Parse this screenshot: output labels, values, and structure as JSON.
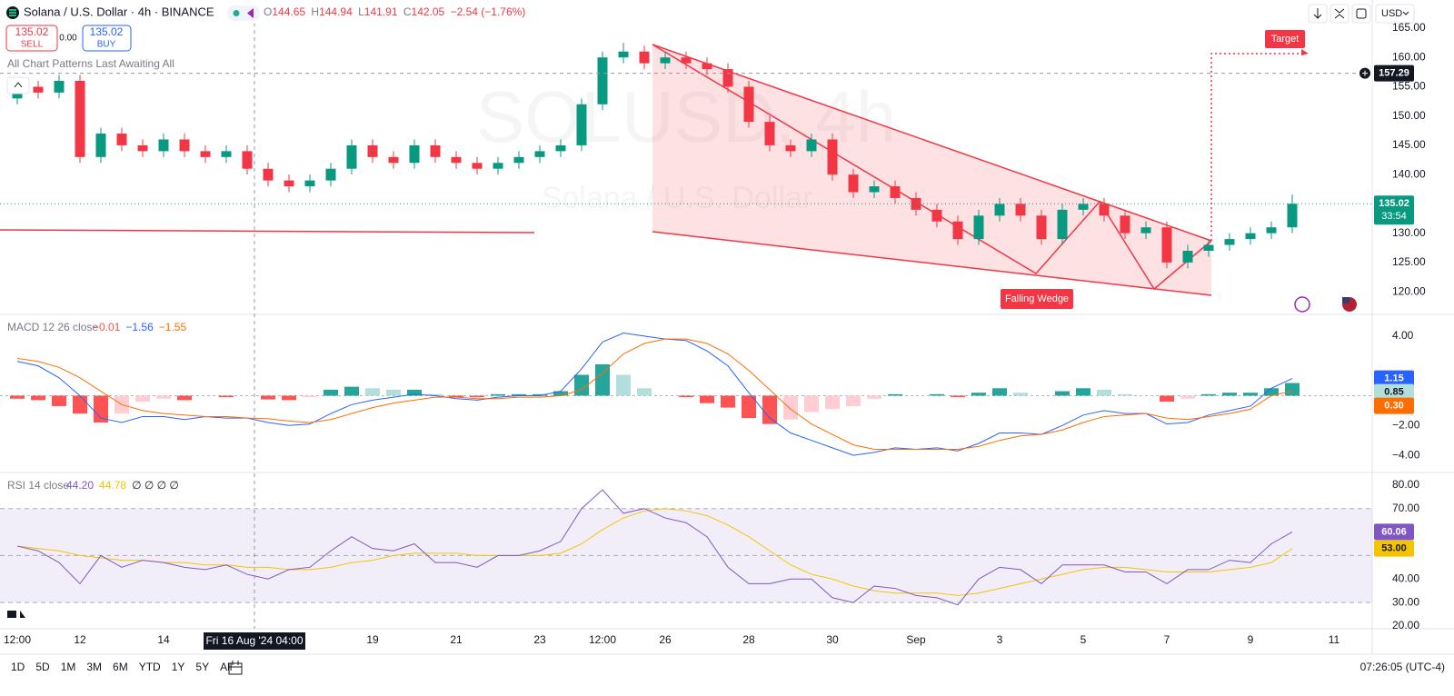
{
  "header": {
    "symbol": "Solana / U.S. Dollar · 4h · BINANCE",
    "ohlc": [
      {
        "key": "O",
        "value": 144.65
      },
      {
        "key": "H",
        "value": 144.94
      },
      {
        "key": "L",
        "value": 141.91
      },
      {
        "key": "C",
        "value": 142.05
      }
    ],
    "change": "−2.54 (−1.76%)"
  },
  "trade": {
    "sell_price": "135.02",
    "sell": "SELL",
    "spread": "0.00",
    "buy_price": "135.02",
    "buy": "BUY"
  },
  "indicator_label": "All Chart Patterns Last Awaiting All",
  "watermark": {
    "ticker": "SOLUSD, 4h",
    "name": "Solana / U.S. Dollar"
  },
  "annotations": {
    "target": "Target",
    "pattern": "Falling Wedge"
  },
  "currency": "USD",
  "chart_data": [
    {
      "type": "candlestick",
      "categories": [
        "12:00",
        null,
        null,
        "12",
        null,
        null,
        null,
        "14",
        null,
        null,
        null,
        null,
        null,
        null,
        null,
        null,
        null,
        "19",
        null,
        null,
        null,
        "21",
        null,
        null,
        null,
        "23",
        null,
        null,
        "12:00",
        null,
        null,
        "26",
        null,
        null,
        null,
        "28",
        null,
        null,
        null,
        "30",
        null,
        null,
        null,
        "Sep",
        null,
        null,
        null,
        "3",
        null,
        null,
        null,
        "5",
        null,
        null,
        null,
        "7",
        null,
        null,
        null,
        "9",
        null,
        null,
        null,
        "11"
      ],
      "open": [
        153,
        155,
        154,
        156,
        143,
        147,
        145,
        144,
        146,
        144,
        143,
        144,
        141,
        139,
        138,
        139,
        141,
        145,
        143,
        142,
        145,
        143,
        142,
        141,
        142,
        143,
        144,
        145,
        152,
        160,
        161,
        159,
        160,
        159,
        158,
        155,
        149,
        145,
        144,
        146,
        140,
        137,
        138,
        136,
        134,
        132,
        129,
        133,
        135,
        133,
        129,
        134,
        135,
        133,
        130,
        131,
        125,
        127,
        128,
        129,
        130,
        131,
        null,
        null
      ],
      "high": [
        156,
        156,
        157,
        157,
        148,
        148,
        146,
        147,
        147,
        145,
        145,
        145,
        142,
        140,
        140,
        142,
        146,
        146,
        144,
        146,
        146,
        144,
        143,
        143,
        144,
        145,
        146,
        153,
        161,
        162.5,
        162,
        161,
        161,
        160,
        159,
        156,
        150,
        146,
        147,
        147,
        141,
        139,
        139,
        137,
        135,
        133,
        134,
        136,
        136,
        134,
        135,
        136,
        136,
        134,
        132,
        132,
        128,
        129,
        130,
        131,
        132,
        136.6,
        null,
        null
      ],
      "low": [
        152,
        153,
        153,
        142,
        142,
        144,
        143,
        143,
        143,
        142,
        142,
        140,
        138,
        137,
        137,
        138,
        140,
        142,
        141,
        141,
        142,
        141,
        140,
        140,
        141,
        142,
        143,
        144,
        151,
        159,
        158,
        158,
        158,
        157,
        154,
        148,
        144,
        143,
        143,
        139,
        136,
        136,
        135,
        133,
        131,
        128,
        128,
        132,
        132,
        128,
        128,
        133,
        132,
        129,
        129,
        124,
        124,
        126,
        127,
        128,
        129,
        130,
        null,
        null
      ],
      "close": [
        155,
        154,
        156,
        143,
        147,
        145,
        144,
        146,
        144,
        143,
        144,
        141,
        139,
        138,
        139,
        141,
        145,
        143,
        142,
        145,
        143,
        142,
        141,
        142,
        143,
        144,
        145,
        152,
        160,
        161,
        159,
        160,
        159,
        158,
        155,
        149,
        145,
        144,
        146,
        140,
        137,
        138,
        136,
        134,
        132,
        129,
        133,
        135,
        133,
        129,
        134,
        135,
        133,
        130,
        131,
        125,
        127,
        128,
        129,
        130,
        131,
        135.02,
        null,
        null
      ],
      "up_color": "#089981",
      "down_color": "#f23645",
      "ylim": [
        116.3,
        169.8
      ],
      "yticks": [
        {
          "value": 165,
          "label": "165.00"
        },
        {
          "value": 160,
          "label": "160.00"
        },
        {
          "value": 155,
          "label": "155.00"
        },
        {
          "value": 150,
          "label": "150.00"
        },
        {
          "value": 145,
          "label": "145.00"
        },
        {
          "value": 140,
          "label": "140.00"
        },
        {
          "value": 130,
          "label": "130.00"
        },
        {
          "value": 125,
          "label": "125.00"
        },
        {
          "value": 120,
          "label": "120.00"
        }
      ],
      "crosshair": {
        "price": 157.29,
        "time": "Fri 16 Aug '24 04:00"
      },
      "countdown": "33:54"
    },
    {
      "type": "macd",
      "title": "MACD 12 26 close",
      "legend_values": [
        "−0.01",
        "−1.56",
        "−1.55"
      ],
      "histogram": {
        "values": [
          -0.2,
          -0.3,
          -0.7,
          -1.2,
          -1.8,
          -1.2,
          -0.4,
          -0.2,
          -0.3,
          0,
          -0.1,
          0,
          -0.25,
          -0.3,
          -0.1,
          0.4,
          0.6,
          0.5,
          0.4,
          0.4,
          0.1,
          -0.1,
          -0.1,
          0.1,
          0.1,
          0.1,
          0.3,
          1.4,
          2.1,
          1.4,
          0.5,
          0,
          -0.1,
          -0.5,
          -0.8,
          -1.5,
          -1.9,
          -1.6,
          -1.1,
          -0.9,
          -0.7,
          -0.2,
          0.1,
          0,
          0.1,
          -0.1,
          0.2,
          0.5,
          0.2,
          0,
          0.3,
          0.5,
          0.4,
          0.1,
          0,
          -0.4,
          -0.2,
          0.1,
          0.2,
          0.2,
          0.5,
          0.85,
          null,
          null
        ],
        "colors": {
          "up": "#26a69a",
          "up_fading": "#b2dfdb",
          "down": "#ff5252",
          "down_fading": "#ffcdd2"
        }
      },
      "macd": {
        "color": "#2962ff",
        "values": [
          2.3,
          2.0,
          1.2,
          0,
          -1.5,
          -1.8,
          -1.4,
          -1.4,
          -1.6,
          -1.4,
          -1.5,
          -1.5,
          -1.8,
          -2.0,
          -1.9,
          -1.2,
          -0.6,
          -0.3,
          -0.1,
          0.1,
          0.0,
          -0.2,
          -0.3,
          -0.1,
          0,
          0,
          0.3,
          1.8,
          3.6,
          4.2,
          4.0,
          3.8,
          3.7,
          3.0,
          2.0,
          0.2,
          -1.5,
          -2.5,
          -3.0,
          -3.5,
          -4.0,
          -3.8,
          -3.5,
          -3.6,
          -3.5,
          -3.7,
          -3.2,
          -2.5,
          -2.5,
          -2.6,
          -2.0,
          -1.3,
          -1.0,
          -1.2,
          -1.2,
          -1.9,
          -1.8,
          -1.3,
          -1.0,
          -0.7,
          0.5,
          1.15,
          null,
          null
        ]
      },
      "signal": {
        "color": "#ff6d00",
        "last_label": "0.30",
        "values": [
          2.5,
          2.3,
          1.9,
          1.2,
          0.3,
          -0.6,
          -1.0,
          -1.2,
          -1.3,
          -1.4,
          -1.4,
          -1.5,
          -1.55,
          -1.7,
          -1.8,
          -1.6,
          -1.2,
          -0.8,
          -0.5,
          -0.3,
          -0.1,
          -0.1,
          -0.2,
          -0.2,
          -0.1,
          -0.1,
          0.0,
          0.4,
          1.5,
          2.8,
          3.5,
          3.8,
          3.8,
          3.5,
          2.8,
          1.7,
          0.4,
          -0.9,
          -1.9,
          -2.6,
          -3.3,
          -3.6,
          -3.6,
          -3.6,
          -3.6,
          -3.6,
          -3.4,
          -3.0,
          -2.7,
          -2.6,
          -2.3,
          -1.8,
          -1.4,
          -1.3,
          -1.2,
          -1.5,
          -1.6,
          -1.4,
          -1.2,
          -0.9,
          0.0,
          0.3,
          null,
          null
        ]
      },
      "zero_line": true,
      "ylim": [
        -5.09,
        5.33
      ],
      "yticks": [
        {
          "value": 4,
          "label": "4.00"
        },
        {
          "value": -2,
          "label": "−2.00"
        },
        {
          "value": -4,
          "label": "−4.00"
        }
      ]
    },
    {
      "type": "rsi",
      "title": "RSI 14 close",
      "legend_values": [
        "44.20",
        "44.78",
        "∅ ∅ ∅ ∅"
      ],
      "rsi": {
        "color": "#7e57c2",
        "values": [
          54,
          52,
          47,
          38,
          50,
          45,
          48,
          47,
          45,
          44,
          46,
          42,
          40,
          44,
          45,
          52,
          58,
          53,
          52,
          55,
          47,
          47,
          45,
          50,
          50,
          52,
          56,
          70,
          78,
          68,
          70,
          66,
          64,
          58,
          45,
          38,
          38,
          40,
          40,
          32,
          30,
          37,
          36,
          33,
          32,
          29,
          40,
          45,
          44,
          38,
          46,
          46,
          46,
          43,
          43,
          38,
          44,
          44,
          48,
          47,
          55,
          60.06,
          null,
          null
        ]
      },
      "ma": {
        "color": "#f5c400",
        "last_label": "53.00",
        "values": [
          54,
          53,
          52,
          50,
          49,
          48,
          48,
          47,
          47,
          46,
          46,
          45,
          45,
          44,
          44,
          45,
          47,
          48,
          50,
          51,
          51,
          51,
          50,
          50,
          50,
          50,
          51,
          55,
          61,
          66,
          69,
          70,
          69,
          67,
          63,
          58,
          52,
          46,
          42,
          40,
          37,
          35,
          34,
          34,
          34,
          33,
          34,
          36,
          38,
          40,
          42,
          44,
          45,
          45,
          44,
          43,
          43,
          43,
          44,
          45,
          47,
          53,
          null,
          null
        ]
      },
      "levels": [
        70,
        50,
        30
      ],
      "band": [
        30,
        70
      ],
      "band_color": "#7e57c2",
      "ylim": [
        19.2,
        84.6
      ],
      "yticks": [
        {
          "value": 80,
          "label": "80.00"
        },
        {
          "value": 70,
          "label": "70.00"
        },
        {
          "value": 40,
          "label": "40.00"
        },
        {
          "value": 30,
          "label": "30.00"
        },
        {
          "value": 20,
          "label": "20.00"
        }
      ]
    }
  ],
  "toolbar": {
    "ranges": [
      "1D",
      "5D",
      "1M",
      "3M",
      "6M",
      "YTD",
      "1Y",
      "5Y",
      "All"
    ],
    "clock": "07:26:05 (UTC-4)"
  }
}
